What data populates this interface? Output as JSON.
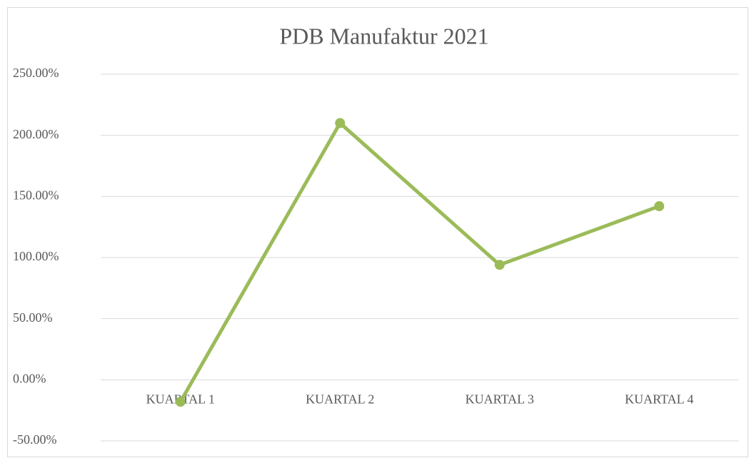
{
  "chart_data": {
    "type": "line",
    "title": "PDB Manufaktur 2021",
    "categories": [
      "KUARTAL 1",
      "KUARTAL 2",
      "KUARTAL 3",
      "KUARTAL 4"
    ],
    "series": [
      {
        "name": "PDB Manufaktur 2021",
        "color": "#9bbb59",
        "values": [
          -18,
          210,
          94,
          142
        ]
      }
    ],
    "ylim": [
      -50,
      250
    ],
    "yticks": [
      {
        "value": -50,
        "label": "-50.00%"
      },
      {
        "value": 0,
        "label": "0.00%"
      },
      {
        "value": 50,
        "label": "50.00%"
      },
      {
        "value": 100,
        "label": "100.00%"
      },
      {
        "value": 150,
        "label": "150.00%"
      },
      {
        "value": 200,
        "label": "200.00%"
      },
      {
        "value": 250,
        "label": "250.00%"
      }
    ],
    "grid": true
  }
}
